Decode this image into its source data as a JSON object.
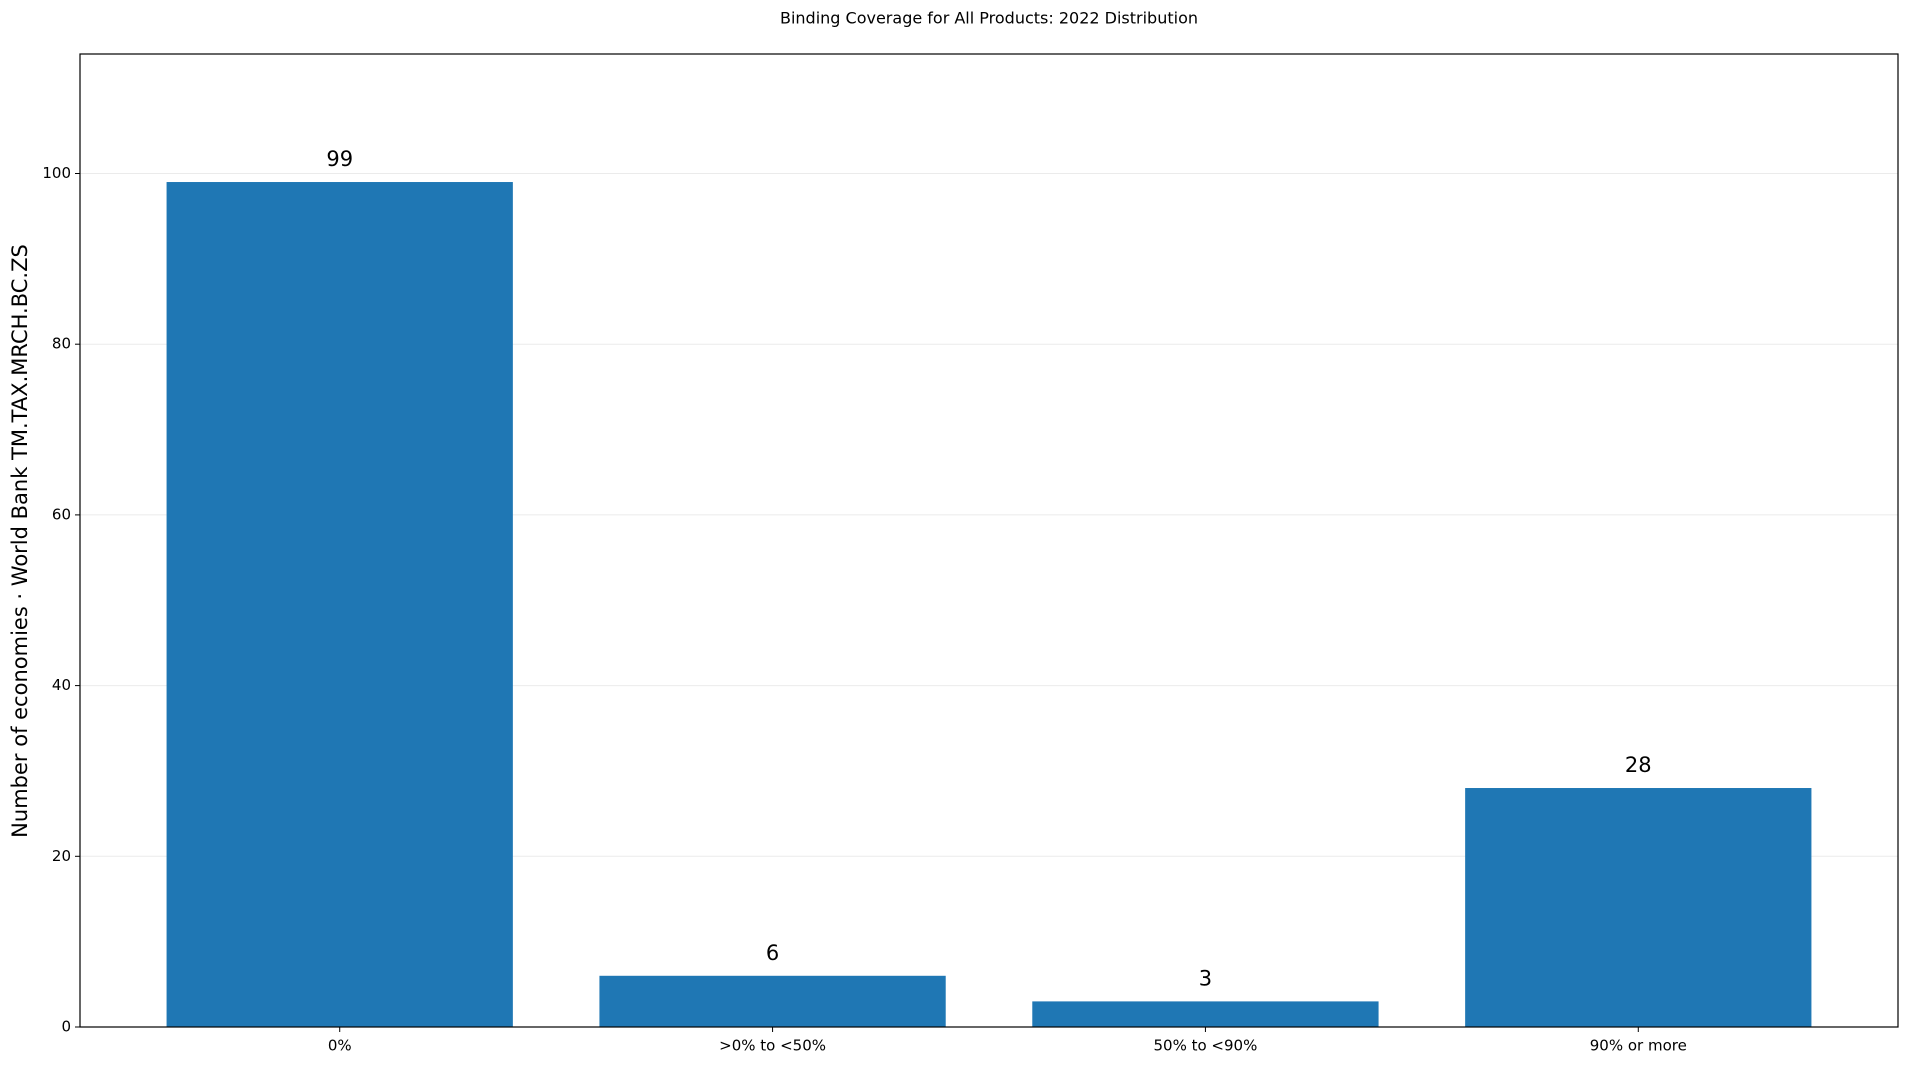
{
  "chart_data": {
    "type": "bar",
    "title": "Binding Coverage for All Products: 2022 Distribution",
    "y_label": "Number of economies · World Bank TM.TAX.MRCH.BC.ZS",
    "categories": [
      "0%",
      ">0% to <50%",
      "50% to <90%",
      "90% or more"
    ],
    "values": [
      99,
      6,
      3,
      28
    ],
    "color": "#1f77b4",
    "ylim": [
      0,
      114
    ],
    "yticks": [
      0,
      20,
      40,
      60,
      80,
      100
    ],
    "grid": true
  }
}
